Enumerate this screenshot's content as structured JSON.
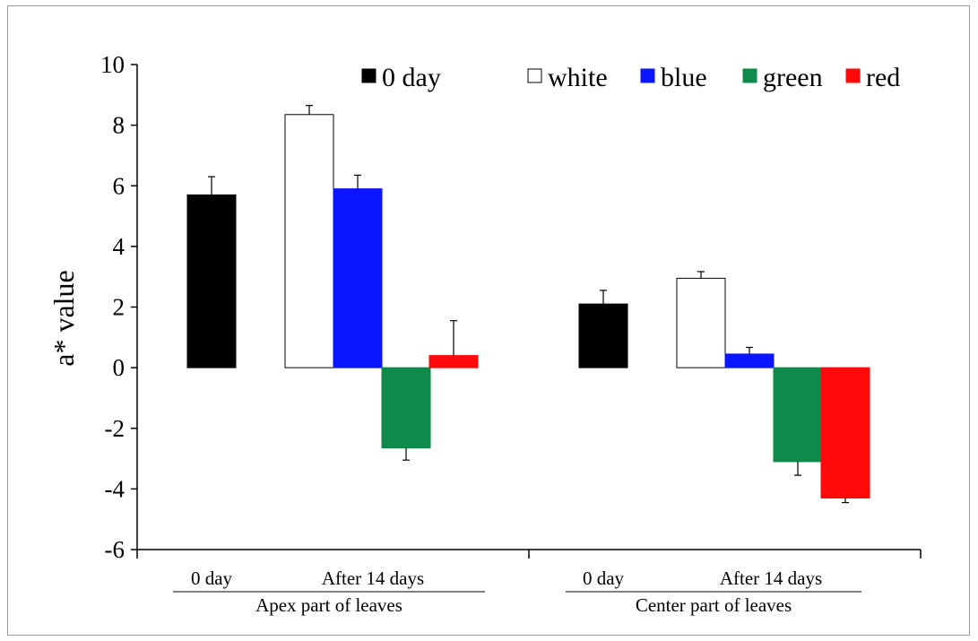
{
  "chart_data": {
    "type": "bar",
    "title": "",
    "ylabel": "a* value",
    "xlabel": "",
    "ylim": [
      -6,
      10
    ],
    "yticks": [
      10,
      8,
      6,
      4,
      2,
      0,
      -2,
      -4,
      -6
    ],
    "legend_position": "top",
    "grid": false,
    "groups": [
      {
        "name": "Apex part of leaves",
        "subgroups": [
          "0 day",
          "After 14 days"
        ],
        "bars": [
          {
            "series": "0 day",
            "value": 5.7,
            "error": 0.6
          },
          {
            "series": "white",
            "value": 8.35,
            "error": 0.3
          },
          {
            "series": "blue",
            "value": 5.9,
            "error": 0.45
          },
          {
            "series": "green",
            "value": -2.65,
            "error": 0.4
          },
          {
            "series": "red",
            "value": 0.4,
            "error": 1.15
          }
        ]
      },
      {
        "name": "Center part of leaves",
        "subgroups": [
          "0 day",
          "After 14 days"
        ],
        "bars": [
          {
            "series": "0 day",
            "value": 2.1,
            "error": 0.45
          },
          {
            "series": "white",
            "value": 2.95,
            "error": 0.22
          },
          {
            "series": "blue",
            "value": 0.45,
            "error": 0.22
          },
          {
            "series": "green",
            "value": -3.1,
            "error": 0.45
          },
          {
            "series": "red",
            "value": -4.3,
            "error": 0.15
          }
        ]
      }
    ],
    "series": [
      {
        "name": "0 day",
        "color": "#000000"
      },
      {
        "name": "white",
        "color": "#ffffff"
      },
      {
        "name": "blue",
        "color": "#0a16ff"
      },
      {
        "name": "green",
        "color": "#0e8a4a"
      },
      {
        "name": "red",
        "color": "#ff0a0a"
      }
    ]
  }
}
